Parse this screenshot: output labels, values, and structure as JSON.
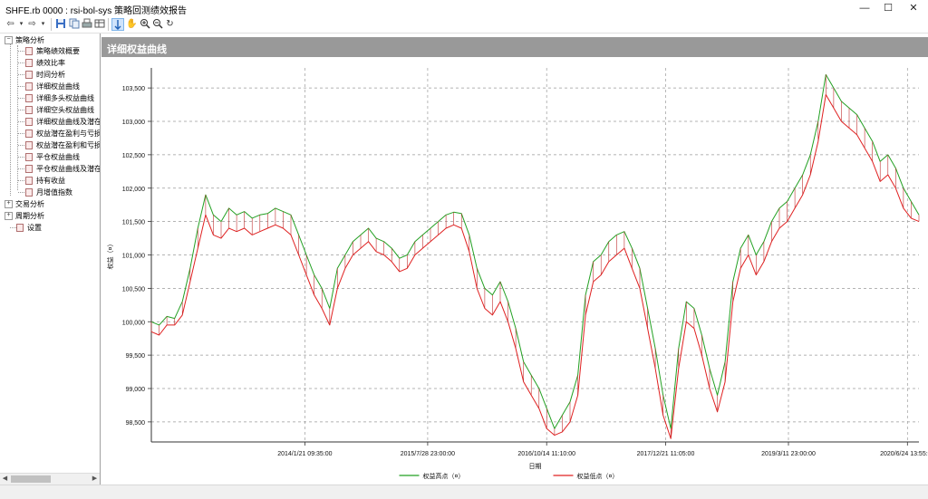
{
  "window": {
    "title": "SHFE.rb 0000 : rsi-bol-sys 策略回测绩效报告",
    "minimize": "—",
    "maximize": "☐",
    "close": "✕"
  },
  "toolbar": {
    "icons": [
      "back-icon",
      "dropdown-icon",
      "forward-icon",
      "dropdown-icon",
      "save-icon",
      "copy-icon",
      "print-icon",
      "data-icon",
      "cursor-icon",
      "hand-icon",
      "zoom-in-icon",
      "zoom-out-icon",
      "reset-icon"
    ]
  },
  "tree": {
    "groups": [
      {
        "label": "策略分析",
        "expanded": true,
        "items": [
          "策略绩效概要",
          "绩效比率",
          "时间分析",
          "详细权益曲线",
          "详细多头权益曲线",
          "详细空头权益曲线",
          "详细权益曲线及潜在",
          "权益潜在盈利与亏损",
          "权益潜在盈利和亏损",
          "平仓权益曲线",
          "平仓权益曲线及潜在",
          "持有收益",
          "月增值指数"
        ]
      },
      {
        "label": "交易分析",
        "expanded": false,
        "items": []
      },
      {
        "label": "周期分析",
        "expanded": false,
        "items": []
      },
      {
        "label": "设置",
        "expanded": false,
        "items": [],
        "leaf": true
      }
    ],
    "selected": "详细权益曲线"
  },
  "panel": {
    "header": "详细权益曲线"
  },
  "chart_data": {
    "type": "line",
    "title": "",
    "xlabel": "日期",
    "ylabel": "权益（¤）",
    "ylim": [
      98200,
      103800
    ],
    "yticks": [
      98500,
      99000,
      99500,
      100000,
      100500,
      101000,
      101500,
      102000,
      102500,
      103000,
      103500
    ],
    "ytick_labels": [
      "98,500",
      "99,000",
      "99,500",
      "100,000",
      "100,500",
      "101,000",
      "101,500",
      "102,000",
      "102,500",
      "103,000",
      "103,500"
    ],
    "xtick_labels": [
      "2014/1/21 09:35:00",
      "2015/7/28 23:00:00",
      "2016/10/14 11:10:00",
      "2017/12/21 11:05:00",
      "2019/3/11 23:00:00",
      "2020/6/24 13:55:00"
    ],
    "x_count": 100,
    "xtick_positions": [
      20,
      36,
      51.5,
      67,
      83,
      98.5
    ],
    "grid": true,
    "legend": "bottom-center",
    "series": [
      {
        "name": "权益高点（¤）",
        "color": "#22a022",
        "values": [
          100000,
          99950,
          100080,
          100050,
          100300,
          100800,
          101400,
          101900,
          101600,
          101500,
          101700,
          101600,
          101650,
          101550,
          101600,
          101620,
          101700,
          101650,
          101600,
          101300,
          101000,
          100700,
          100500,
          100200,
          100800,
          101000,
          101200,
          101300,
          101400,
          101250,
          101200,
          101100,
          100950,
          101000,
          101200,
          101300,
          101400,
          101500,
          101600,
          101640,
          101620,
          101300,
          100800,
          100500,
          100400,
          100600,
          100300,
          99900,
          99400,
          99200,
          99000,
          98700,
          98400,
          98600,
          98800,
          99200,
          100400,
          100900,
          101000,
          101200,
          101300,
          101350,
          101100,
          100800,
          100200,
          99600,
          98900,
          98400,
          99600,
          100300,
          100200,
          99800,
          99300,
          98900,
          99400,
          100600,
          101100,
          101300,
          101000,
          101200,
          101500,
          101700,
          101800,
          102000,
          102200,
          102500,
          103000,
          103700,
          103500,
          103300,
          103200,
          103100,
          102900,
          102700,
          102400,
          102500,
          102300,
          102000,
          101800,
          101600
        ]
      },
      {
        "name": "权益低点（¤）",
        "color": "#e02020",
        "values": [
          99850,
          99800,
          99950,
          99950,
          100100,
          100600,
          101100,
          101600,
          101300,
          101250,
          101400,
          101350,
          101400,
          101300,
          101350,
          101400,
          101450,
          101400,
          101300,
          101000,
          100700,
          100400,
          100200,
          99950,
          100500,
          100800,
          101000,
          101100,
          101200,
          101050,
          101000,
          100900,
          100750,
          100800,
          101000,
          101100,
          101200,
          101300,
          101400,
          101450,
          101400,
          101050,
          100500,
          100200,
          100100,
          100300,
          100000,
          99600,
          99100,
          98900,
          98700,
          98400,
          98300,
          98350,
          98500,
          98900,
          100100,
          100600,
          100700,
          100900,
          101000,
          101100,
          100800,
          100500,
          99900,
          99300,
          98600,
          98250,
          99300,
          100000,
          99900,
          99500,
          99000,
          98650,
          99100,
          100300,
          100800,
          101000,
          100700,
          100900,
          101200,
          101400,
          101500,
          101700,
          101900,
          102200,
          102700,
          103400,
          103200,
          103000,
          102900,
          102800,
          102600,
          102400,
          102100,
          102200,
          102000,
          101700,
          101550,
          101500
        ]
      }
    ]
  }
}
